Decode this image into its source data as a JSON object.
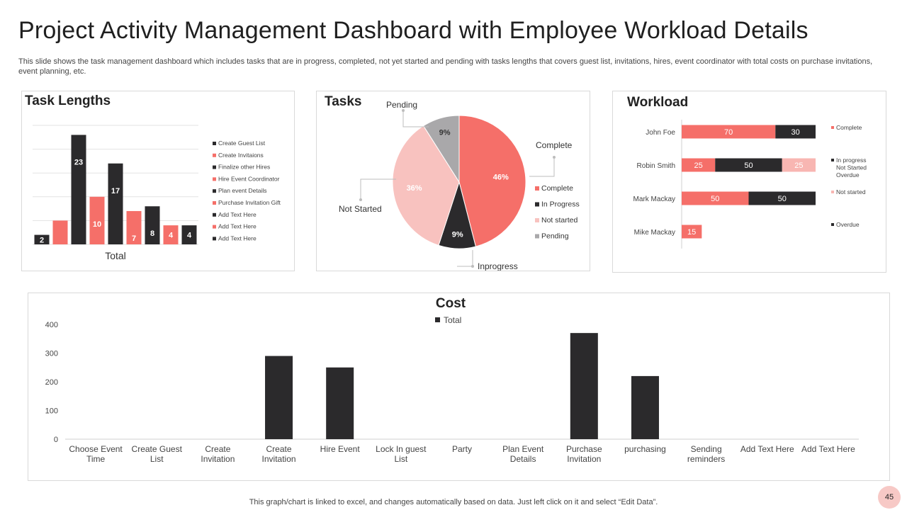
{
  "title": "Project Activity Management Dashboard with Employee Workload Details",
  "subtitle": "This slide shows the task management dashboard which includes tasks that are in progress, completed, not yet started and pending with tasks lengths that covers guest list, invitations, hires, event coordinator with total costs on purchase invitations, event planning, etc.",
  "footer": "This graph/chart is linked to excel, and changes automatically based on data. Just left click on it and select “Edit Data”.",
  "page_number": "45",
  "colors": {
    "dark": "#2b2a2c",
    "coral": "#f56f69",
    "pink": "#f8b6b2",
    "gray": "#a9a8aa"
  },
  "chart_data": [
    {
      "type": "bar",
      "title": "Task Lengths",
      "xlabel": "Total",
      "categories": [
        "Create Guest List",
        "Create Invitaions",
        "Finalize other Hires",
        "Hire Event Coordinator",
        "Plan event Details",
        "Purchase Invitation Gift",
        "Add Text Here",
        "Add Text Here",
        "Add Text Here"
      ],
      "values": [
        2,
        5,
        23,
        10,
        17,
        7,
        8,
        4,
        4
      ],
      "colors": [
        "#2b2a2c",
        "#f56f69",
        "#2b2a2c",
        "#f56f69",
        "#2b2a2c",
        "#f56f69",
        "#2b2a2c",
        "#f56f69",
        "#2b2a2c"
      ],
      "ylim": [
        0,
        25
      ],
      "grid": true,
      "legend": "right"
    },
    {
      "type": "pie",
      "title": "Tasks",
      "labels": [
        "Complete",
        "Inprogress",
        "Not Started",
        "Pending"
      ],
      "legend_labels": [
        "Complete",
        "In Progress",
        "Not started",
        "Pending"
      ],
      "values": [
        46,
        9,
        36,
        9
      ],
      "value_labels": [
        "46%",
        "9%",
        "36%",
        "9%"
      ],
      "colors": [
        "#f56f69",
        "#2b2a2c",
        "#f8c2bf",
        "#a9a8aa"
      ],
      "legend": "right"
    },
    {
      "type": "bar",
      "orientation": "horizontal",
      "stacked": true,
      "title": "Workload",
      "categories": [
        "John Foe",
        "Robin Smith",
        "Mark Mackay",
        "Mike Mackay"
      ],
      "xlim": [
        0,
        100
      ],
      "series": [
        {
          "name": "Complete",
          "values": [
            70,
            25,
            50,
            15
          ],
          "color": "#f56f69"
        },
        {
          "name": "In progress Not Started Overdue",
          "values": [
            30,
            50,
            50,
            0
          ],
          "color": "#2b2a2c"
        },
        {
          "name": "Not started",
          "values": [
            0,
            25,
            0,
            0
          ],
          "color": "#f8b6b2"
        },
        {
          "name": "Overdue",
          "values": [
            0,
            0,
            0,
            0
          ],
          "color": "#2b2a2c"
        }
      ],
      "legend": "right"
    },
    {
      "type": "bar",
      "title": "Cost",
      "categories": [
        "Choose Event Time",
        "Create Guest List",
        "Create Invitation",
        "Create Invitation",
        "Hire Event",
        "Lock In guest List",
        "Party",
        "Plan Event Details",
        "Purchase Invitation",
        "purchasing",
        "Sending reminders",
        "Add Text Here",
        "Add Text Here"
      ],
      "series": [
        {
          "name": "Total",
          "values": [
            0,
            0,
            0,
            290,
            250,
            0,
            0,
            0,
            370,
            220,
            0,
            0,
            0
          ]
        }
      ],
      "ylim": [
        0,
        400
      ],
      "yticks": [
        0,
        100,
        200,
        300,
        400
      ],
      "grid": false,
      "legend": "top"
    }
  ]
}
